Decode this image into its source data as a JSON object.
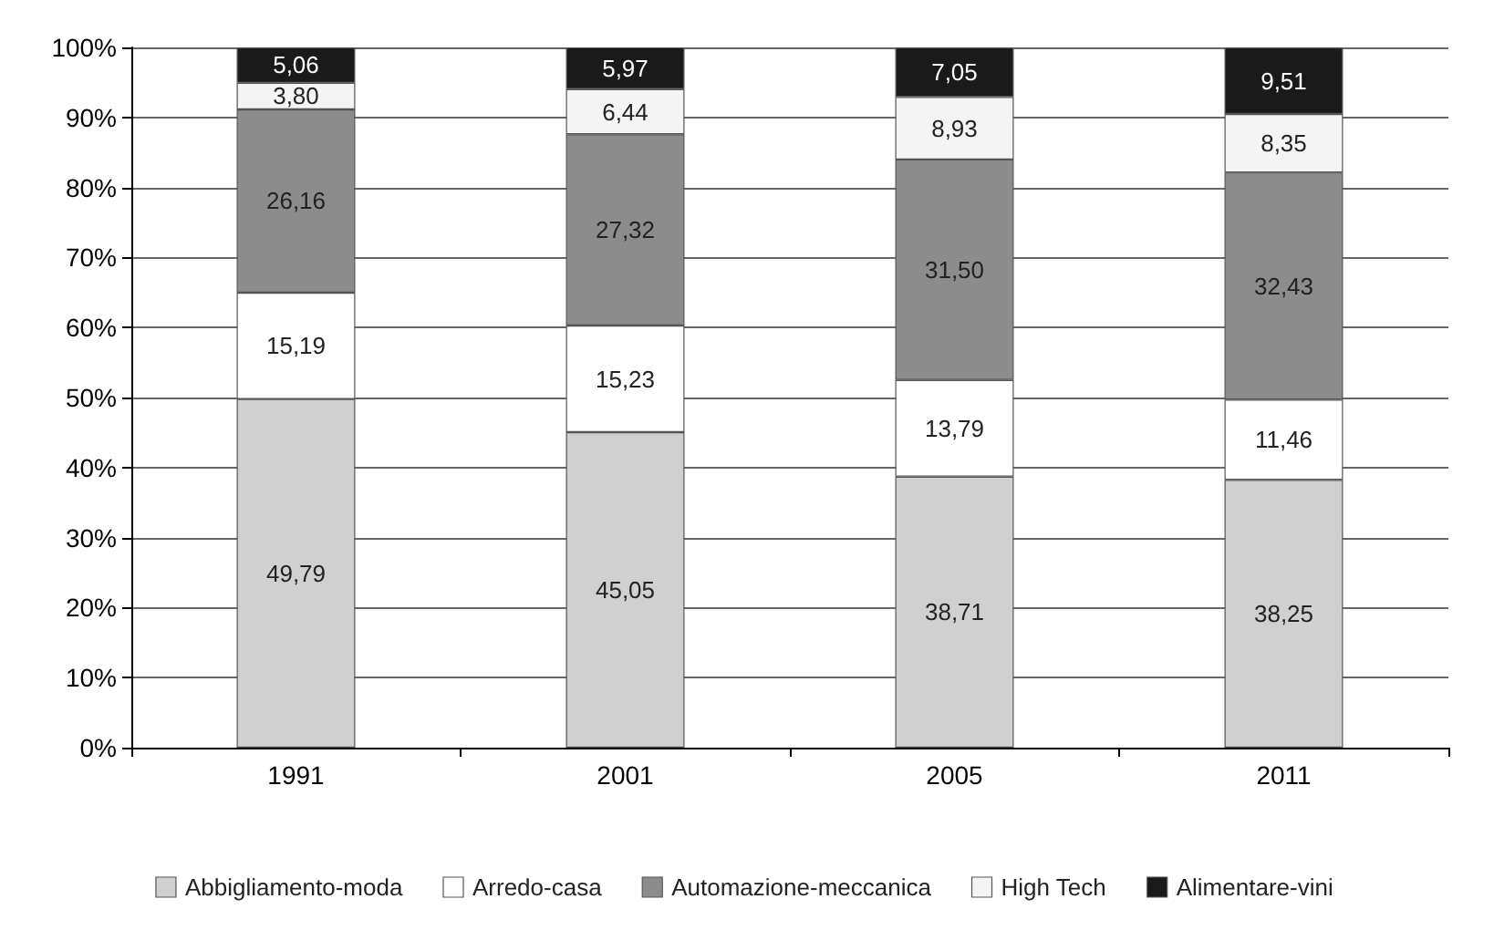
{
  "chart_data": {
    "type": "bar",
    "stacked": true,
    "categories": [
      "1991",
      "2001",
      "2005",
      "2011"
    ],
    "series": [
      {
        "name": "Abbigliamento-moda",
        "color": "#d0d0d0",
        "values": [
          49.79,
          45.05,
          38.71,
          38.25
        ],
        "value_labels": [
          "49,79",
          "45,05",
          "38,71",
          "38,25"
        ]
      },
      {
        "name": "Arredo-casa",
        "color": "#ffffff",
        "values": [
          15.19,
          15.23,
          13.79,
          11.46
        ],
        "value_labels": [
          "15,19",
          "15,23",
          "13,79",
          "11,46"
        ]
      },
      {
        "name": "Automazione-meccanica",
        "color": "#8c8c8c",
        "values": [
          26.16,
          27.32,
          31.5,
          32.43
        ],
        "value_labels": [
          "26,16",
          "27,32",
          "31,50",
          "32,43"
        ]
      },
      {
        "name": "High Tech",
        "color": "#f4f4f4",
        "values": [
          3.8,
          6.44,
          8.93,
          8.35
        ],
        "value_labels": [
          "3,80",
          "6,44",
          "8,93",
          "8,35"
        ]
      },
      {
        "name": "Alimentare-vini",
        "color": "#1a1a1a",
        "values": [
          5.06,
          5.97,
          7.05,
          9.51
        ],
        "value_labels": [
          "5,06",
          "5,97",
          "7,05",
          "9,51"
        ]
      }
    ],
    "ylim": [
      0,
      100
    ],
    "yticks": [
      {
        "value": 0,
        "label": "0%"
      },
      {
        "value": 10,
        "label": "10%"
      },
      {
        "value": 20,
        "label": "20%"
      },
      {
        "value": 30,
        "label": "30%"
      },
      {
        "value": 40,
        "label": "40%"
      },
      {
        "value": 50,
        "label": "50%"
      },
      {
        "value": 60,
        "label": "60%"
      },
      {
        "value": 70,
        "label": "70%"
      },
      {
        "value": 80,
        "label": "80%"
      },
      {
        "value": 90,
        "label": "90%"
      },
      {
        "value": 100,
        "label": "100%"
      }
    ],
    "grid": "y",
    "legend": "bottom"
  }
}
